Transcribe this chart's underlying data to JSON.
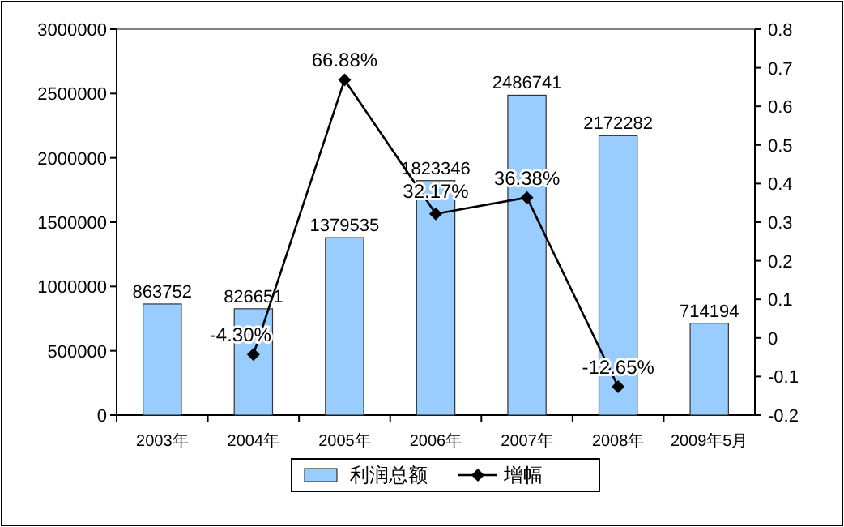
{
  "chart_data": {
    "type": "bar",
    "categories": [
      "2003年",
      "2004年",
      "2005年",
      "2006年",
      "2007年",
      "2008年",
      "2009年5月"
    ],
    "series": [
      {
        "name": "利润总额",
        "color": "#99ccff",
        "values": [
          863752,
          826651,
          1379535,
          1823346,
          2486741,
          2172282,
          714194
        ],
        "data_labels": true
      },
      {
        "name": "增幅",
        "type": "line",
        "axis": "y2",
        "color": "#000000",
        "marker": "diamond",
        "values": [
          null,
          -0.043,
          0.6688,
          0.3217,
          0.3638,
          -0.1265,
          null
        ],
        "value_labels": [
          null,
          "-4.30%",
          "66.88%",
          "32.17%",
          "36.38%",
          "-12.65%",
          null
        ]
      }
    ],
    "ylim": [
      0,
      3000000
    ],
    "yticks": [
      0,
      500000,
      1000000,
      1500000,
      2000000,
      2500000,
      3000000
    ],
    "y2lim": [
      -0.2,
      0.8
    ],
    "y2ticks": [
      -0.2,
      -0.1,
      0,
      0.1,
      0.2,
      0.3,
      0.4,
      0.5,
      0.6,
      0.7,
      0.8
    ],
    "legend": "bottom",
    "grid": false
  }
}
